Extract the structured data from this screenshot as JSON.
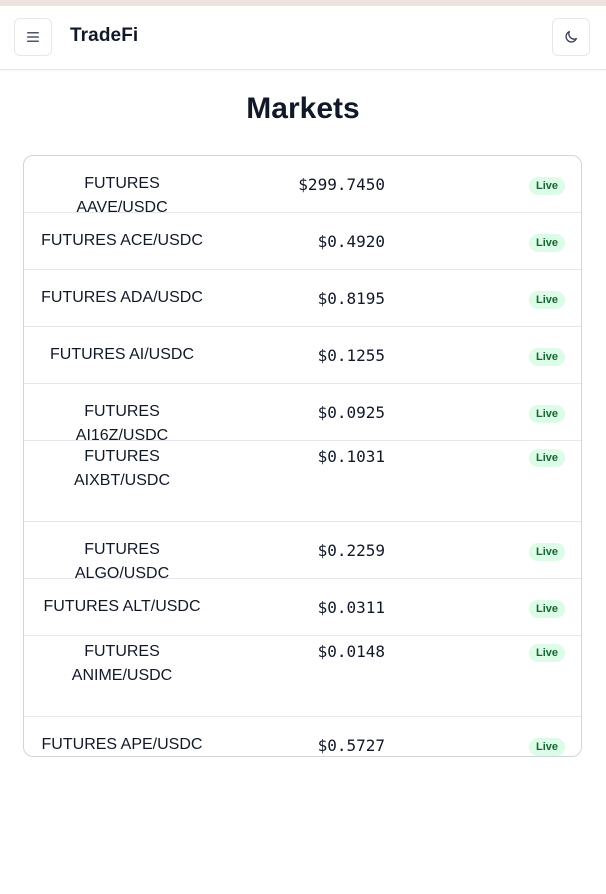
{
  "header": {
    "brand": "TradeFi",
    "menu_icon": "hamburger-menu-icon",
    "theme_icon": "moon-icon"
  },
  "page": {
    "title": "Markets"
  },
  "markets": [
    {
      "symbol": "FUTURES AAVE/USDC",
      "price": "$299.7450",
      "status": "Live"
    },
    {
      "symbol": "FUTURES ACE/USDC",
      "price": "$0.4920",
      "status": "Live"
    },
    {
      "symbol": "FUTURES ADA/USDC",
      "price": "$0.8195",
      "status": "Live"
    },
    {
      "symbol": "FUTURES AI/USDC",
      "price": "$0.1255",
      "status": "Live"
    },
    {
      "symbol": "FUTURES AI16Z/USDC",
      "price": "$0.0925",
      "status": "Live"
    },
    {
      "symbol": "FUTURES AIXBT/USDC",
      "price": "$0.1031",
      "status": "Live"
    },
    {
      "symbol": "FUTURES ALGO/USDC",
      "price": "$0.2259",
      "status": "Live"
    },
    {
      "symbol": "FUTURES ALT/USDC",
      "price": "$0.0311",
      "status": "Live"
    },
    {
      "symbol": "FUTURES ANIME/USDC",
      "price": "$0.0148",
      "status": "Live"
    },
    {
      "symbol": "FUTURES APE/USDC",
      "price": "$0.5727",
      "status": "Live"
    }
  ],
  "colors": {
    "badge_bg": "#dcfce7",
    "badge_text": "#166534",
    "accent_strip": "#ede4df"
  }
}
